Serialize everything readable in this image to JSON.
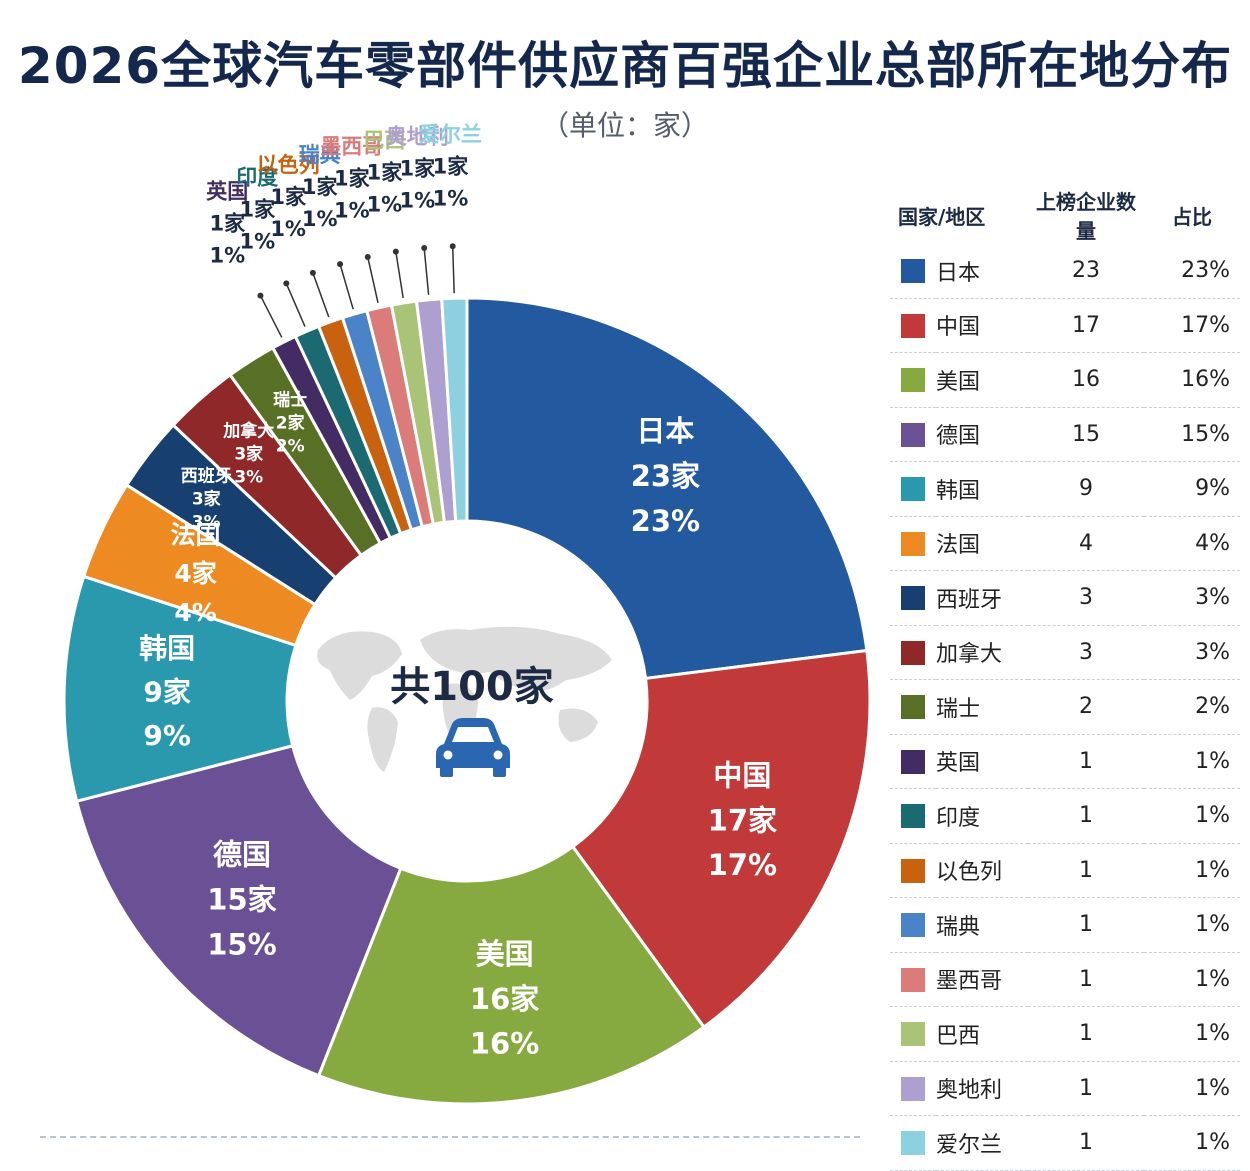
{
  "chart_data": {
    "type": "pie",
    "title": "2026全球汽车零部件供应商百强企业总部所在地分布",
    "subtitle": "（单位：家）",
    "center_label": "共100家",
    "legend_headers": {
      "name": "国家/地区",
      "count": "上榜企业数量",
      "share": "占比"
    },
    "slices": [
      {
        "name": "日本",
        "value": 23,
        "count_label": "23家",
        "share": "23%",
        "color": "#23599e"
      },
      {
        "name": "中国",
        "value": 17,
        "count_label": "17家",
        "share": "17%",
        "color": "#c13a39"
      },
      {
        "name": "美国",
        "value": 16,
        "count_label": "16家",
        "share": "16%",
        "color": "#86aa3f"
      },
      {
        "name": "德国",
        "value": 15,
        "count_label": "15家",
        "share": "15%",
        "color": "#6a5195"
      },
      {
        "name": "韩国",
        "value": 9,
        "count_label": "9家",
        "share": "9%",
        "color": "#2a99ad"
      },
      {
        "name": "法国",
        "value": 4,
        "count_label": "4家",
        "share": "4%",
        "color": "#ee8a22"
      },
      {
        "name": "西班牙",
        "value": 3,
        "count_label": "3家",
        "share": "3%",
        "color": "#173f70"
      },
      {
        "name": "加拿大",
        "value": 3,
        "count_label": "3家",
        "share": "3%",
        "color": "#8e2829"
      },
      {
        "name": "瑞士",
        "value": 2,
        "count_label": "2家",
        "share": "2%",
        "color": "#587025"
      },
      {
        "name": "英国",
        "value": 1,
        "count_label": "1家",
        "share": "1%",
        "color": "#432c63"
      },
      {
        "name": "印度",
        "value": 1,
        "count_label": "1家",
        "share": "1%",
        "color": "#1b6a72"
      },
      {
        "name": "以色列",
        "value": 1,
        "count_label": "1家",
        "share": "1%",
        "color": "#c8620f"
      },
      {
        "name": "瑞典",
        "value": 1,
        "count_label": "1家",
        "share": "1%",
        "color": "#4a83c7"
      },
      {
        "name": "墨西哥",
        "value": 1,
        "count_label": "1家",
        "share": "1%",
        "color": "#db7b7a"
      },
      {
        "name": "巴西",
        "value": 1,
        "count_label": "1家",
        "share": "1%",
        "color": "#a9c476"
      },
      {
        "name": "奥地利",
        "value": 1,
        "count_label": "1家",
        "share": "1%",
        "color": "#ad9fcf"
      },
      {
        "name": "爱尔兰",
        "value": 1,
        "count_label": "1家",
        "share": "1%",
        "color": "#8dd1e0"
      }
    ]
  }
}
